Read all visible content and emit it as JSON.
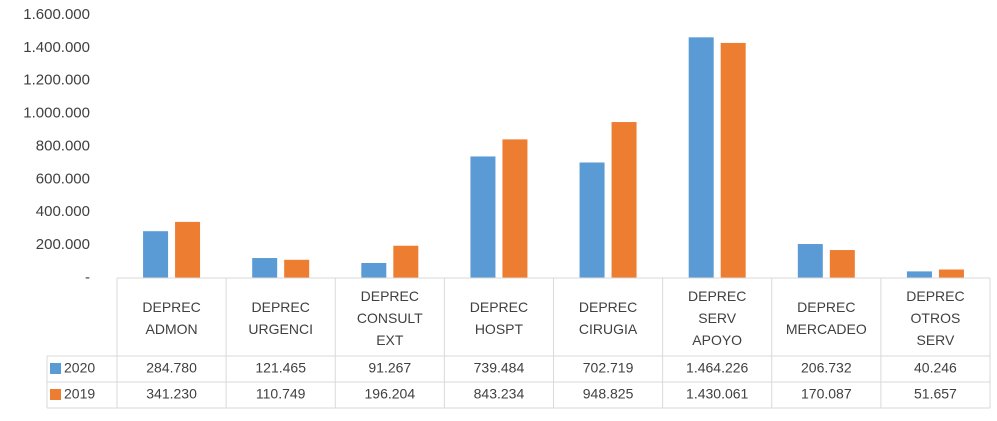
{
  "chart_data": {
    "type": "bar",
    "categories": [
      "DEPREC ADMON",
      "DEPREC URGENCI",
      "DEPREC CONSULT EXT",
      "DEPREC HOSPT",
      "DEPREC CIRUGIA",
      "DEPREC SERV APOYO",
      "DEPREC MERCADEO",
      "DEPREC OTROS SERV"
    ],
    "series": [
      {
        "name": "2020",
        "color": "#5b9bd5",
        "values": [
          284780,
          121465,
          91267,
          739484,
          702719,
          1464226,
          206732,
          40246
        ],
        "value_labels": [
          "284.780",
          "121.465",
          "91.267",
          "739.484",
          "702.719",
          "1.464.226",
          "206.732",
          "40.246"
        ]
      },
      {
        "name": "2019",
        "color": "#ed7d31",
        "values": [
          341230,
          110749,
          196204,
          843234,
          948825,
          1430061,
          170087,
          51657
        ],
        "value_labels": [
          "341.230",
          "110.749",
          "196.204",
          "843.234",
          "948.825",
          "1.430.061",
          "170.087",
          "51.657"
        ]
      }
    ],
    "ylim": [
      0,
      1600000
    ],
    "yticks": [
      {
        "value": 0,
        "label": "-"
      },
      {
        "value": 200000,
        "label": "200.000"
      },
      {
        "value": 400000,
        "label": "400.000"
      },
      {
        "value": 600000,
        "label": "600.000"
      },
      {
        "value": 800000,
        "label": "800.000"
      },
      {
        "value": 1000000,
        "label": "1.000.000"
      },
      {
        "value": 1200000,
        "label": "1.200.000"
      },
      {
        "value": 1400000,
        "label": "1.400.000"
      },
      {
        "value": 1600000,
        "label": "1.600.000"
      }
    ],
    "grid": false
  }
}
